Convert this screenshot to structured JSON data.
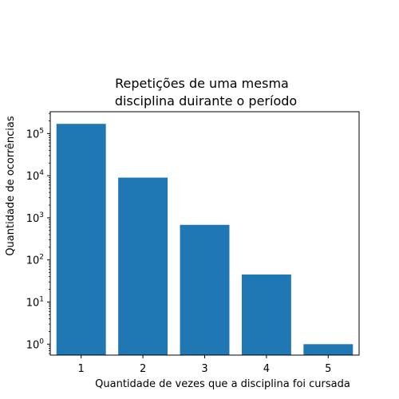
{
  "chart_data": {
    "type": "bar",
    "title_lines": [
      "Repetições de uma mesma",
      "disciplina duirante o período"
    ],
    "xlabel": "Quantidade de vezes que a disciplina foi cursada",
    "ylabel": "Quantidade de ocorrências",
    "categories": [
      "1",
      "2",
      "3",
      "4",
      "5"
    ],
    "values": [
      170000,
      9000,
      680,
      45,
      1
    ],
    "y_scale": "log",
    "ylim": [
      0.55,
      330000
    ],
    "y_ticks": [
      {
        "value": 1,
        "base": "10",
        "exp": "0"
      },
      {
        "value": 10,
        "base": "10",
        "exp": "1"
      },
      {
        "value": 100,
        "base": "10",
        "exp": "2"
      },
      {
        "value": 1000,
        "base": "10",
        "exp": "3"
      },
      {
        "value": 10000,
        "base": "10",
        "exp": "4"
      },
      {
        "value": 100000,
        "base": "10",
        "exp": "5"
      }
    ],
    "bar_color": "#1f77b4",
    "grid": false,
    "legend": "none"
  }
}
